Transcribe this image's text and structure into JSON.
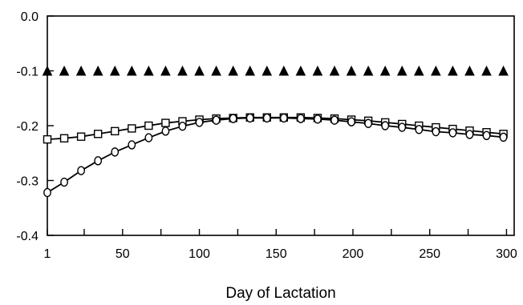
{
  "chart_data": {
    "type": "line",
    "title": "",
    "xlabel": "Day of Lactation",
    "ylabel": "",
    "xlim": [
      1,
      305
    ],
    "ylim": [
      -0.4,
      0.0
    ],
    "grid": false,
    "legend": "none",
    "x_ticks": [
      {
        "value": 1,
        "label": "1"
      },
      {
        "value": 50,
        "label": "50"
      },
      {
        "value": 100,
        "label": "100"
      },
      {
        "value": 150,
        "label": "150"
      },
      {
        "value": 200,
        "label": "200"
      },
      {
        "value": 250,
        "label": "250"
      },
      {
        "value": 300,
        "label": "300"
      }
    ],
    "y_ticks": [
      {
        "value": 0.0,
        "label": "0.0"
      },
      {
        "value": -0.1,
        "label": "-0.1"
      },
      {
        "value": -0.2,
        "label": "-0.2"
      },
      {
        "value": -0.3,
        "label": "-0.3"
      },
      {
        "value": -0.4,
        "label": "-0.4"
      }
    ],
    "x": [
      1,
      12,
      23,
      34,
      45,
      56,
      67,
      78,
      89,
      100,
      111,
      122,
      133,
      144,
      155,
      166,
      177,
      188,
      199,
      210,
      221,
      232,
      243,
      254,
      265,
      276,
      287,
      298
    ],
    "series": [
      {
        "marker": "triangle",
        "fill": "filled",
        "line": false,
        "values": [
          -0.1,
          -0.1,
          -0.1,
          -0.1,
          -0.1,
          -0.1,
          -0.1,
          -0.1,
          -0.1,
          -0.1,
          -0.1,
          -0.1,
          -0.1,
          -0.1,
          -0.1,
          -0.1,
          -0.1,
          -0.1,
          -0.1,
          -0.1,
          -0.1,
          -0.1,
          -0.1,
          -0.1,
          -0.1,
          -0.1,
          -0.1,
          -0.1
        ]
      },
      {
        "marker": "square",
        "fill": "open",
        "line": true,
        "values": [
          -0.225,
          -0.223,
          -0.22,
          -0.215,
          -0.21,
          -0.205,
          -0.2,
          -0.195,
          -0.192,
          -0.189,
          -0.187,
          -0.186,
          -0.185,
          -0.185,
          -0.185,
          -0.185,
          -0.186,
          -0.187,
          -0.189,
          -0.191,
          -0.194,
          -0.197,
          -0.2,
          -0.203,
          -0.206,
          -0.209,
          -0.212,
          -0.215
        ]
      },
      {
        "marker": "circle",
        "fill": "open",
        "line": true,
        "values": [
          -0.322,
          -0.303,
          -0.282,
          -0.264,
          -0.248,
          -0.235,
          -0.222,
          -0.21,
          -0.201,
          -0.194,
          -0.19,
          -0.187,
          -0.186,
          -0.186,
          -0.186,
          -0.187,
          -0.188,
          -0.19,
          -0.193,
          -0.196,
          -0.2,
          -0.203,
          -0.207,
          -0.211,
          -0.213,
          -0.216,
          -0.218,
          -0.221
        ]
      }
    ]
  }
}
